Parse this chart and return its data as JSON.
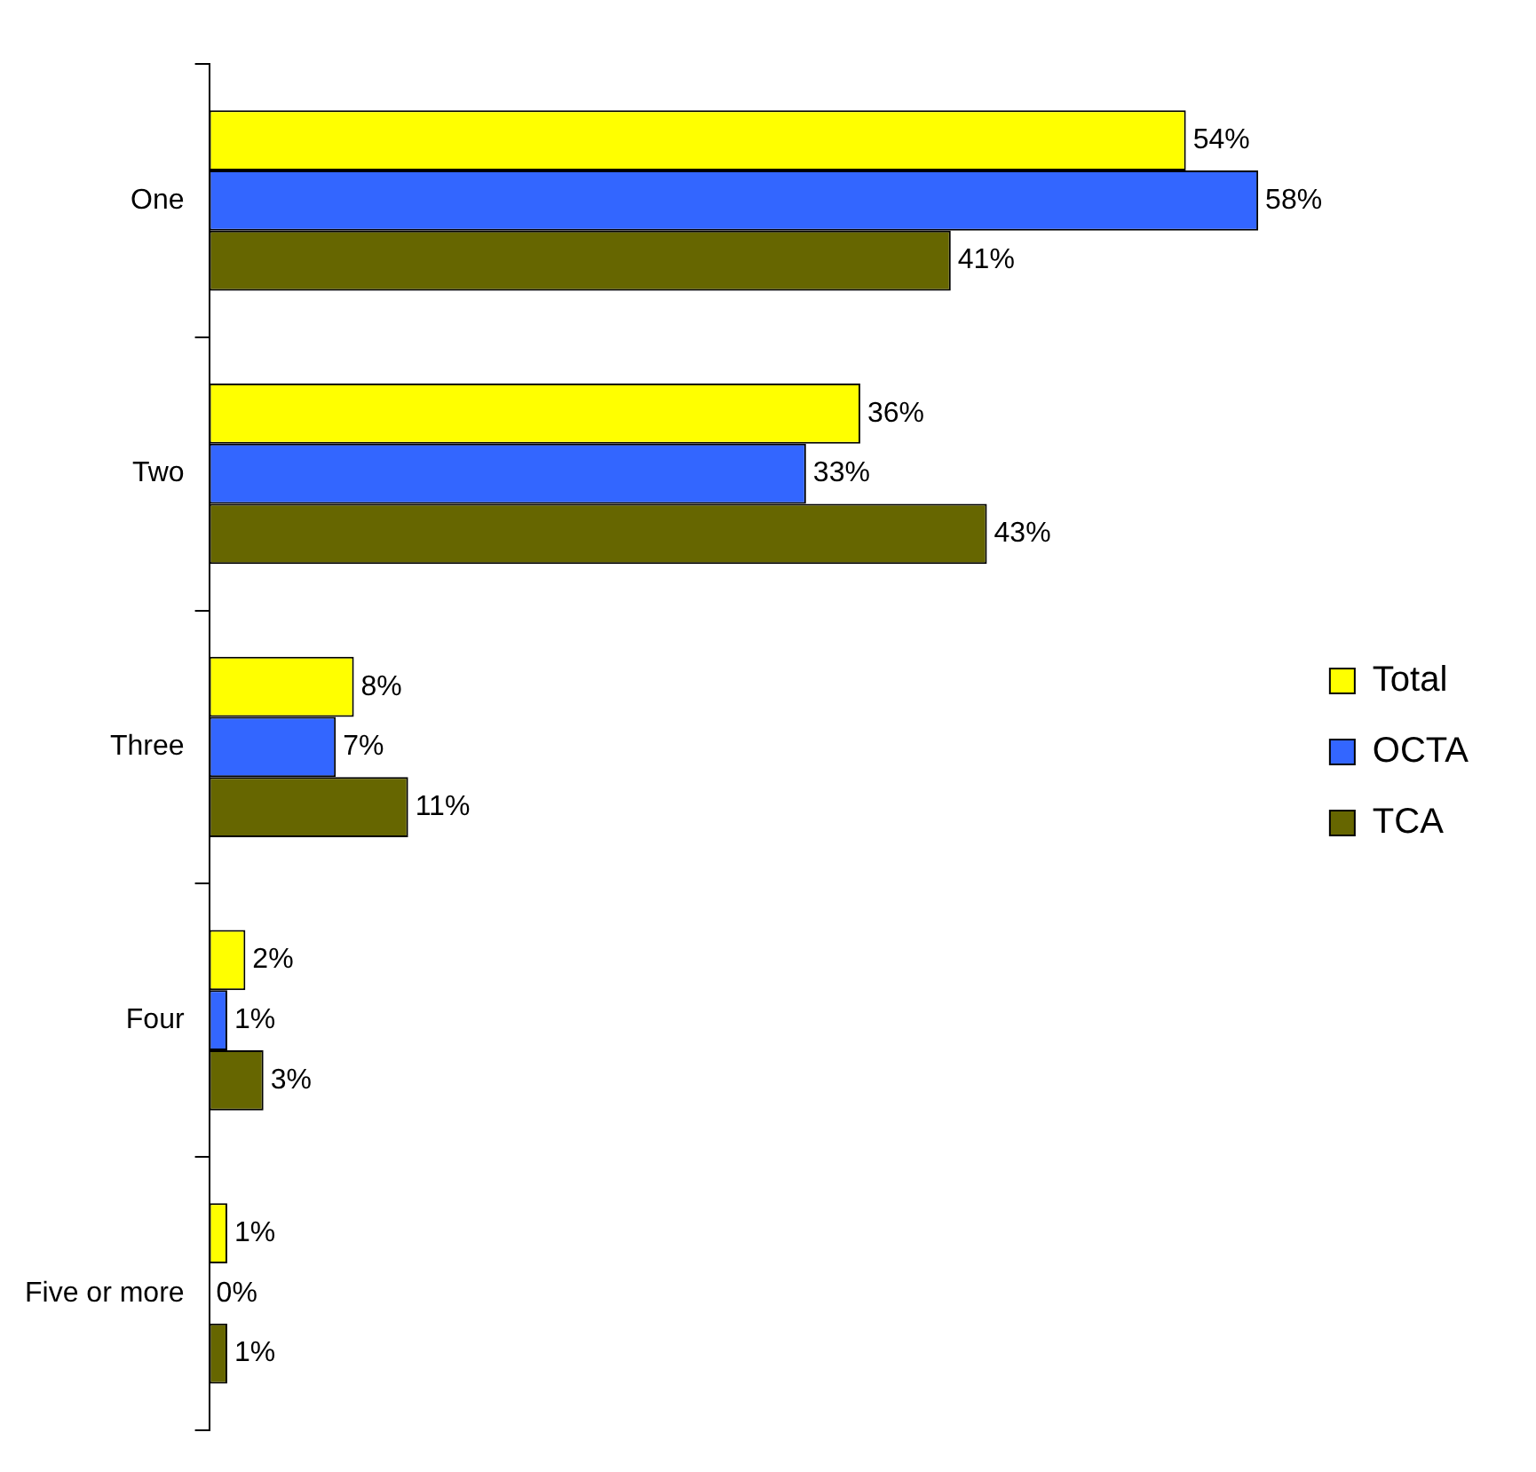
{
  "chart_data": {
    "type": "bar",
    "orientation": "horizontal",
    "categories": [
      "One",
      "Two",
      "Three",
      "Four",
      "Five or more"
    ],
    "series": [
      {
        "name": "Total",
        "color": "#ffff00",
        "values": [
          54,
          36,
          8,
          2,
          1
        ],
        "value_labels": [
          "54%",
          "36%",
          "8%",
          "2%",
          "1%"
        ]
      },
      {
        "name": "OCTA",
        "color": "#3366ff",
        "values": [
          58,
          33,
          7,
          1,
          0
        ],
        "value_labels": [
          "58%",
          "33%",
          "7%",
          "1%",
          "0%"
        ]
      },
      {
        "name": "TCA",
        "color": "#666600",
        "values": [
          41,
          43,
          11,
          3,
          1
        ],
        "value_labels": [
          "41%",
          "43%",
          "11%",
          "3%",
          "1%"
        ]
      }
    ],
    "legend": "right"
  }
}
